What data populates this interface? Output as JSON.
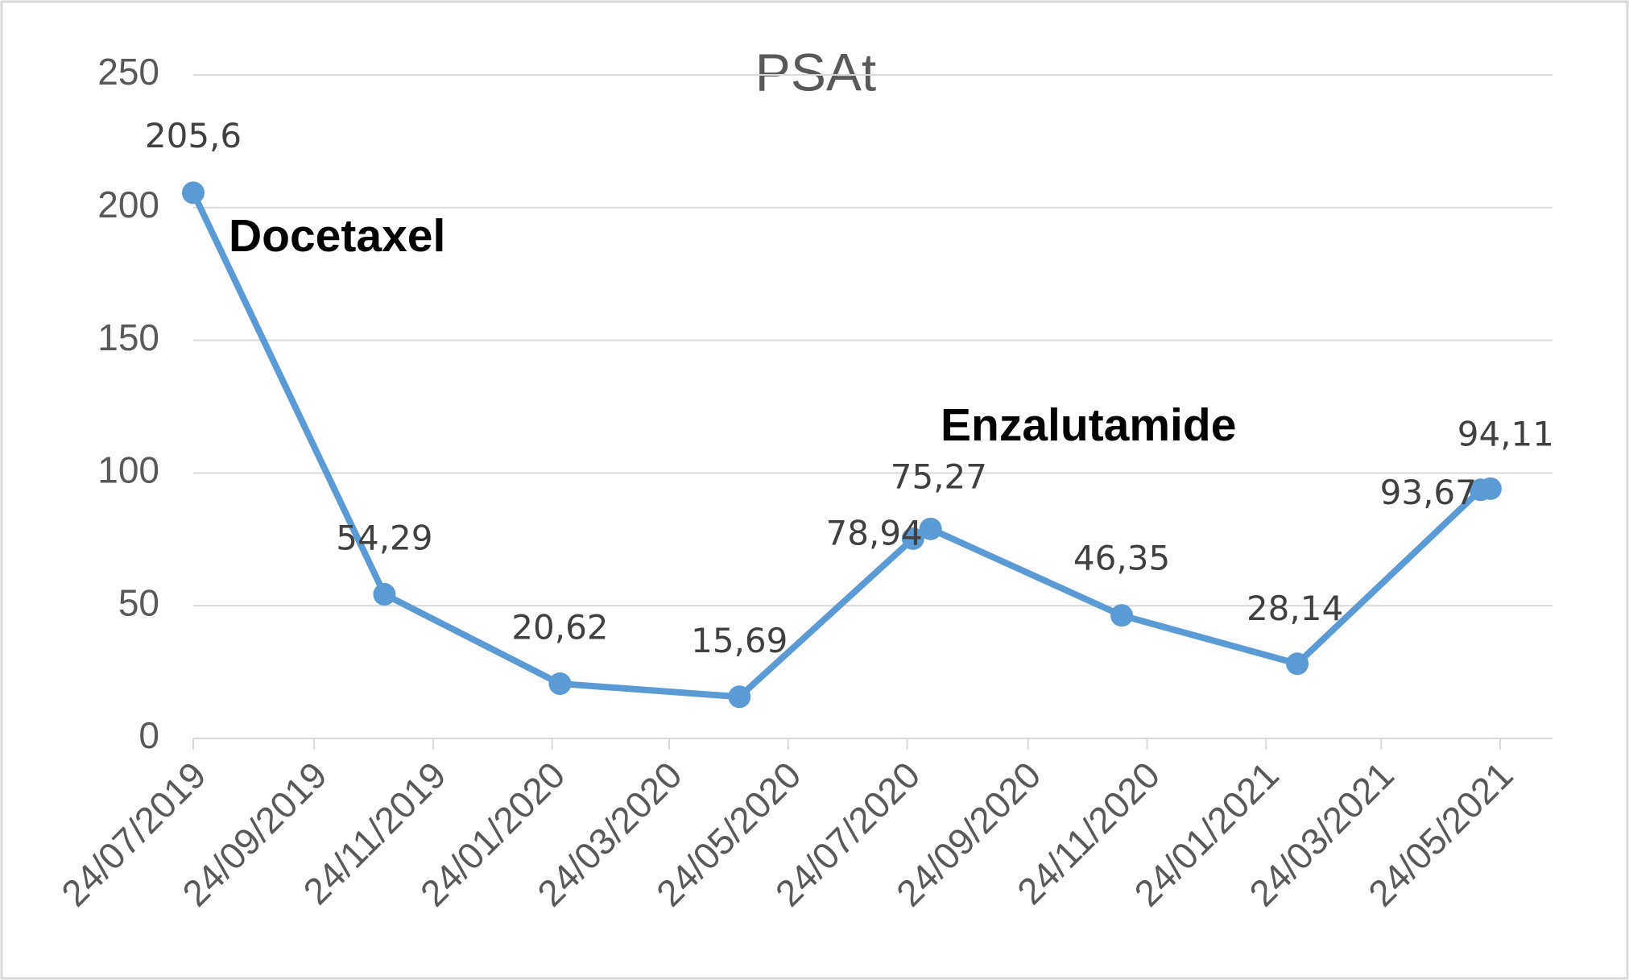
{
  "chart_data": {
    "type": "line",
    "title": "PSAt",
    "x": [
      "2019-07-24",
      "2019-10-30",
      "2020-01-28",
      "2020-04-29",
      "2020-07-27",
      "2020-08-05",
      "2020-11-11",
      "2021-02-09",
      "2021-05-14",
      "2021-05-19"
    ],
    "series": [
      {
        "name": "PSAt",
        "color": "#5b9bd5",
        "values": [
          205.6,
          54.29,
          20.62,
          15.69,
          75.27,
          78.94,
          46.35,
          28.14,
          93.67,
          94.11
        ],
        "value_labels": [
          "205,6",
          "54,29",
          "20,62",
          "15,69",
          "75,27",
          "78,94",
          "46,35",
          "28,14",
          "93,67",
          "94,11"
        ]
      }
    ],
    "xlim": [
      "2019-07-24",
      "2021-05-24"
    ],
    "xticks": [
      {
        "value": "2019-07-24",
        "label": "24/07/2019"
      },
      {
        "value": "2019-09-24",
        "label": "24/09/2019"
      },
      {
        "value": "2019-11-24",
        "label": "24/11/2019"
      },
      {
        "value": "2020-01-24",
        "label": "24/01/2020"
      },
      {
        "value": "2020-03-24",
        "label": "24/03/2020"
      },
      {
        "value": "2020-05-24",
        "label": "24/05/2020"
      },
      {
        "value": "2020-07-24",
        "label": "24/07/2020"
      },
      {
        "value": "2020-09-24",
        "label": "24/09/2020"
      },
      {
        "value": "2020-11-24",
        "label": "24/11/2020"
      },
      {
        "value": "2021-01-24",
        "label": "24/01/2021"
      },
      {
        "value": "2021-03-24",
        "label": "24/03/2021"
      },
      {
        "value": "2021-05-24",
        "label": "24/05/2021"
      }
    ],
    "ylim": [
      0,
      250
    ],
    "yticks": [
      0,
      50,
      100,
      150,
      200,
      250
    ],
    "grid": true,
    "annotations": [
      "Docetaxel",
      "Enzalutamide"
    ]
  }
}
